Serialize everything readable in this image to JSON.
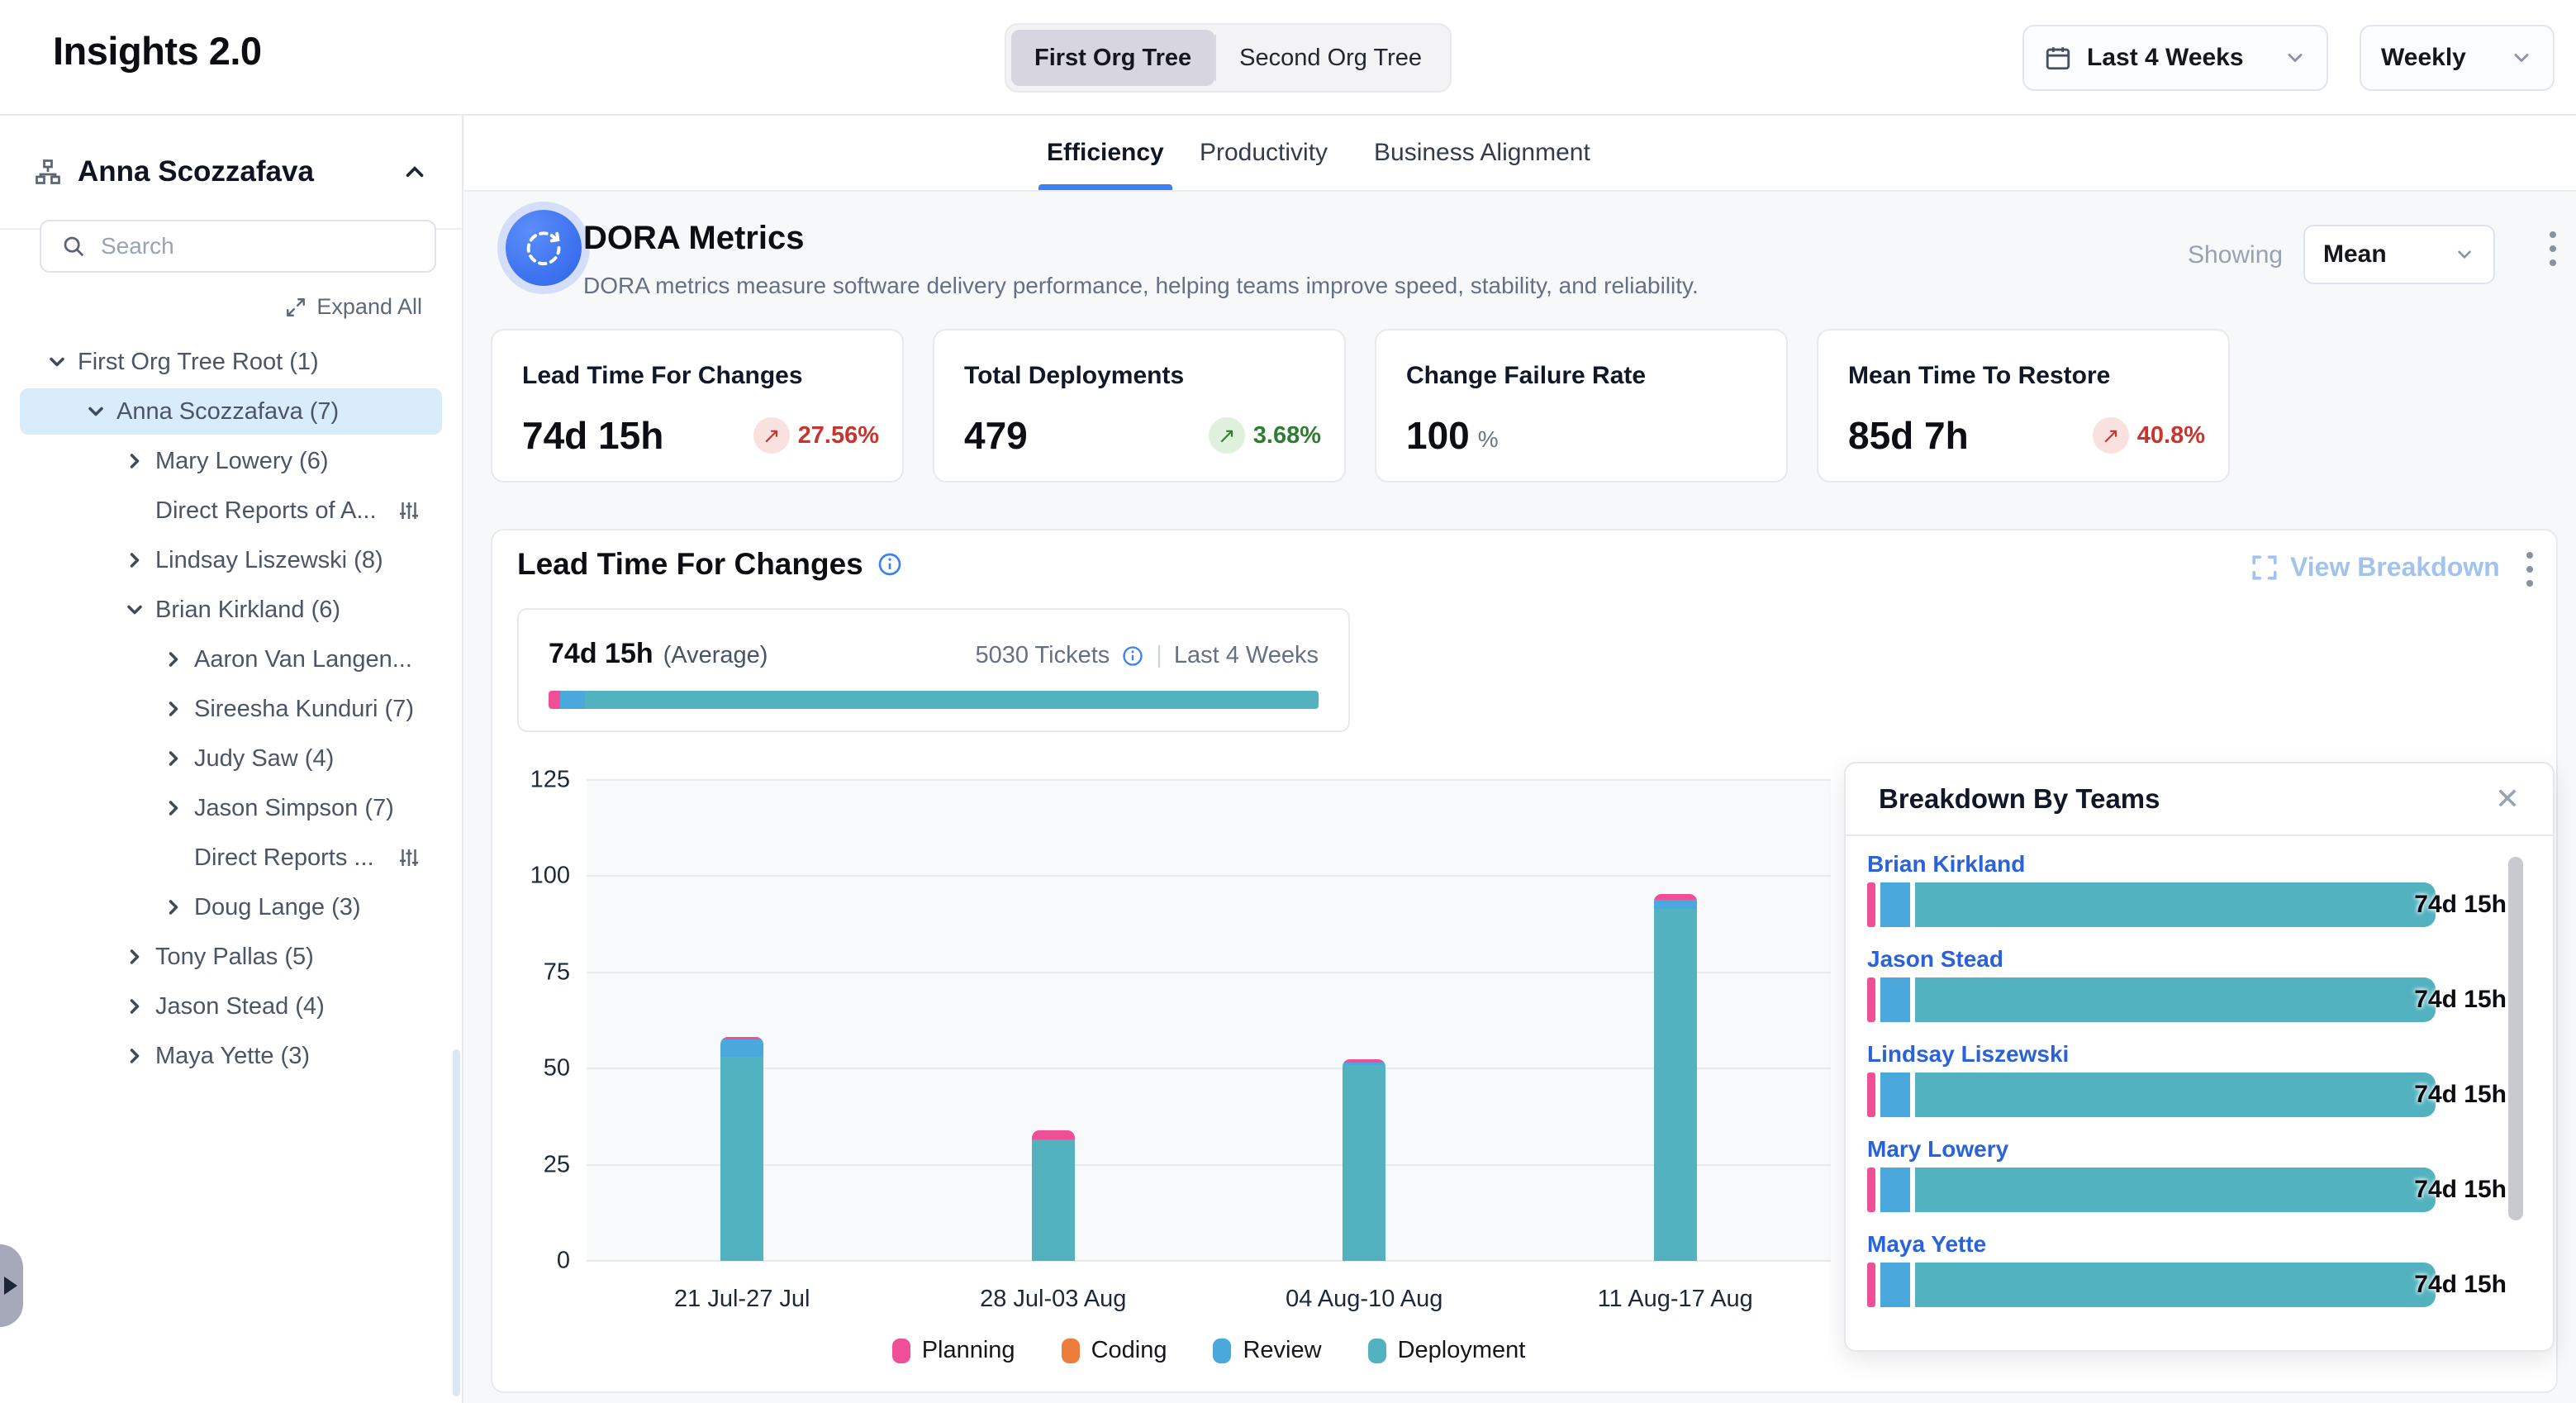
{
  "app": {
    "title": "Insights 2.0"
  },
  "header": {
    "org_tree_toggle": [
      {
        "label": "First Org Tree",
        "active": true
      },
      {
        "label": "Second Org Tree",
        "active": false
      }
    ],
    "date_range": {
      "label": "Last 4 Weeks"
    },
    "granularity": {
      "label": "Weekly"
    }
  },
  "sidebar": {
    "user": "Anna Scozzafava",
    "search_placeholder": "Search",
    "expand_all_label": "Expand All",
    "tree": [
      {
        "label": "First Org Tree Root (1)",
        "level": 0,
        "state": "expanded",
        "selected": false,
        "filter_icon": false
      },
      {
        "label": "Anna Scozzafava (7)",
        "level": 1,
        "state": "expanded",
        "selected": true,
        "filter_icon": false
      },
      {
        "label": "Mary Lowery (6)",
        "level": 2,
        "state": "collapsed",
        "selected": false,
        "filter_icon": false
      },
      {
        "label": "Direct Reports of A...",
        "level": 2,
        "state": "none",
        "selected": false,
        "filter_icon": true
      },
      {
        "label": "Lindsay Liszewski (8)",
        "level": 2,
        "state": "collapsed",
        "selected": false,
        "filter_icon": false
      },
      {
        "label": "Brian Kirkland (6)",
        "level": 2,
        "state": "expanded",
        "selected": false,
        "filter_icon": false
      },
      {
        "label": "Aaron Van Langen...",
        "level": 3,
        "state": "collapsed",
        "selected": false,
        "filter_icon": false
      },
      {
        "label": "Sireesha Kunduri (7)",
        "level": 3,
        "state": "collapsed",
        "selected": false,
        "filter_icon": false
      },
      {
        "label": "Judy Saw (4)",
        "level": 3,
        "state": "collapsed",
        "selected": false,
        "filter_icon": false
      },
      {
        "label": "Jason Simpson (7)",
        "level": 3,
        "state": "collapsed",
        "selected": false,
        "filter_icon": false
      },
      {
        "label": "Direct Reports ...",
        "level": 3,
        "state": "none",
        "selected": false,
        "filter_icon": true
      },
      {
        "label": "Doug Lange (3)",
        "level": 3,
        "state": "collapsed",
        "selected": false,
        "filter_icon": false
      },
      {
        "label": "Tony Pallas (5)",
        "level": 2,
        "state": "collapsed",
        "selected": false,
        "filter_icon": false
      },
      {
        "label": "Jason Stead (4)",
        "level": 2,
        "state": "collapsed",
        "selected": false,
        "filter_icon": false
      },
      {
        "label": "Maya Yette (3)",
        "level": 2,
        "state": "collapsed",
        "selected": false,
        "filter_icon": false
      }
    ]
  },
  "tabs": [
    {
      "label": "Efficiency",
      "active": true
    },
    {
      "label": "Productivity",
      "active": false
    },
    {
      "label": "Business Alignment",
      "active": false
    }
  ],
  "dora": {
    "title": "DORA Metrics",
    "subtitle": "DORA metrics measure software delivery performance, helping teams improve speed, stability, and reliability.",
    "showing_label": "Showing",
    "showing_value": "Mean",
    "cards": [
      {
        "title": "Lead Time For Changes",
        "value": "74d 15h",
        "suffix": "",
        "delta": "27.56%",
        "direction": "up",
        "tone": "negative"
      },
      {
        "title": "Total Deployments",
        "value": "479",
        "suffix": "",
        "delta": "3.68%",
        "direction": "up",
        "tone": "positive"
      },
      {
        "title": "Change Failure Rate",
        "value": "100",
        "suffix": "%",
        "delta": "",
        "direction": "",
        "tone": ""
      },
      {
        "title": "Mean Time To Restore",
        "value": "85d 7h",
        "suffix": "",
        "delta": "40.8%",
        "direction": "up",
        "tone": "negative"
      }
    ]
  },
  "lead_time": {
    "title": "Lead Time For Changes",
    "view_breakdown_label": "View Breakdown",
    "average": {
      "value": "74d 15h",
      "label": "(Average)",
      "tickets": "5030 Tickets",
      "range": "Last 4 Weeks",
      "segments": [
        {
          "series": "Planning",
          "pct": 1.5
        },
        {
          "series": "Review",
          "pct": 3.2
        },
        {
          "series": "Deployment",
          "pct": 95.3
        }
      ]
    }
  },
  "chart_data": {
    "type": "bar",
    "stacked": true,
    "title": "Lead Time For Changes",
    "categories": [
      "21 Jul-27 Jul",
      "28 Jul-03 Aug",
      "04 Aug-10 Aug",
      "11 Aug-17 Aug"
    ],
    "series": [
      {
        "name": "Planning",
        "color": "#ee4f96",
        "values": [
          0.8,
          2.5,
          1.0,
          1.5
        ]
      },
      {
        "name": "Coding",
        "color": "#ed7d3a",
        "values": [
          0,
          0,
          0,
          0
        ]
      },
      {
        "name": "Review",
        "color": "#4aa8dd",
        "values": [
          4.5,
          0,
          0.5,
          2.3
        ]
      },
      {
        "name": "Deployment",
        "color": "#53b2bf",
        "values": [
          53,
          31.5,
          51,
          91.5
        ]
      }
    ],
    "stack_order": [
      "Deployment",
      "Review",
      "Coding",
      "Planning"
    ],
    "ylim": [
      0,
      125
    ],
    "yticks": [
      0,
      25,
      50,
      75,
      100,
      125
    ],
    "grid": true,
    "legend_position": "bottom"
  },
  "breakdown": {
    "title": "Breakdown By Teams",
    "teams": [
      {
        "name": "Brian Kirkland",
        "value": "74d 15h"
      },
      {
        "name": "Jason Stead",
        "value": "74d 15h"
      },
      {
        "name": "Lindsay Liszewski",
        "value": "74d 15h"
      },
      {
        "name": "Mary Lowery",
        "value": "74d 15h"
      },
      {
        "name": "Maya Yette",
        "value": "74d 15h"
      }
    ],
    "row_segments": [
      {
        "series": "Planning",
        "pct": 1.5
      },
      {
        "series": "Review",
        "pct": 5.2
      },
      {
        "series": "Deployment",
        "pct": 91.8
      }
    ]
  },
  "colors": {
    "accent_blue": "#3d7ff5",
    "planning": "#ee4f96",
    "coding": "#ed7d3a",
    "review": "#4aa8dd",
    "deployment": "#53b2bf",
    "negative_red": "#c8352e",
    "negative_bg": "#f8e1de",
    "positive_green": "#2f7d32",
    "positive_bg": "#dff0dc",
    "selected_row": "#d9ecfb",
    "link_blue": "#2962d9"
  }
}
